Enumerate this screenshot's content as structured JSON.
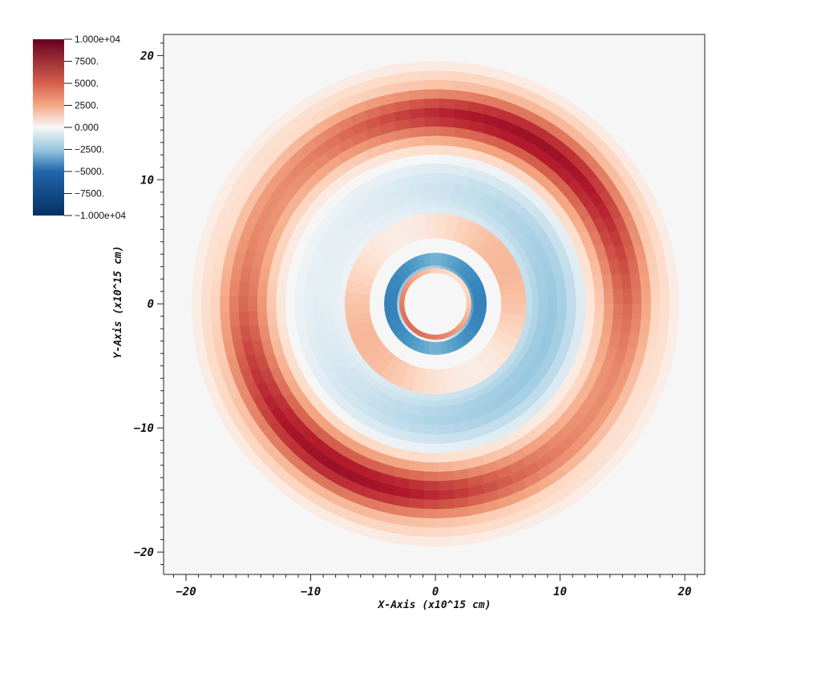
{
  "chart_data": {
    "type": "heatmap",
    "geometry": "polar",
    "xlabel": "X-Axis (x10^15 cm)",
    "ylabel": "Y-Axis (x10^15 cm)",
    "xlim": [
      -21.8,
      21.6
    ],
    "ylim": [
      -21.8,
      21.7
    ],
    "x_ticks": [
      -20,
      -10,
      0,
      10,
      20
    ],
    "y_ticks": [
      -20,
      -10,
      0,
      10,
      20
    ],
    "x_tick_labels": [
      "−20",
      "−10",
      "0",
      "10",
      "20"
    ],
    "y_tick_labels": [
      "−20",
      "−10",
      "0",
      "10",
      "20"
    ],
    "colorbar": {
      "range": [
        -10000,
        10000
      ],
      "colormap": "Cool to Warm",
      "colors": {
        "min": "#053061",
        "low": "#2166ac",
        "mid_low": "#92c5de",
        "zero": "#f7f7f7",
        "mid_high": "#f4a582",
        "high": "#d6604d",
        "max": "#67001f"
      },
      "ticks": [
        10000,
        7500,
        5000,
        2500,
        0,
        -2500,
        -5000,
        -7500,
        -10000
      ],
      "tick_labels": [
        "1.000e+04",
        "7500.",
        "5000.",
        "2500.",
        "0.000",
        "−2500.",
        "−5000.",
        "−7500.",
        "−1.000e+04"
      ]
    },
    "features": [
      {
        "shape": "ring",
        "r_inner": 3.0,
        "r_outer": 4.0,
        "peak_value": -6000,
        "note": "blue ring, stronger on left and right"
      },
      {
        "shape": "ring",
        "r_inner": 2.6,
        "r_outer": 3.0,
        "peak_value": 4500,
        "note": "thin red ring"
      },
      {
        "shape": "ring",
        "r_inner": 5.5,
        "r_outer": 7.0,
        "peak_value": 2000
      },
      {
        "shape": "ring",
        "r_inner": 7.0,
        "r_outer": 12.0,
        "peak_value": -2500
      },
      {
        "shape": "ring",
        "r_inner": 12.0,
        "r_outer": 18.0,
        "peak_value": 8000,
        "peak_radius": 15.3,
        "note": "strongest at top-right and bottom-left"
      }
    ]
  }
}
